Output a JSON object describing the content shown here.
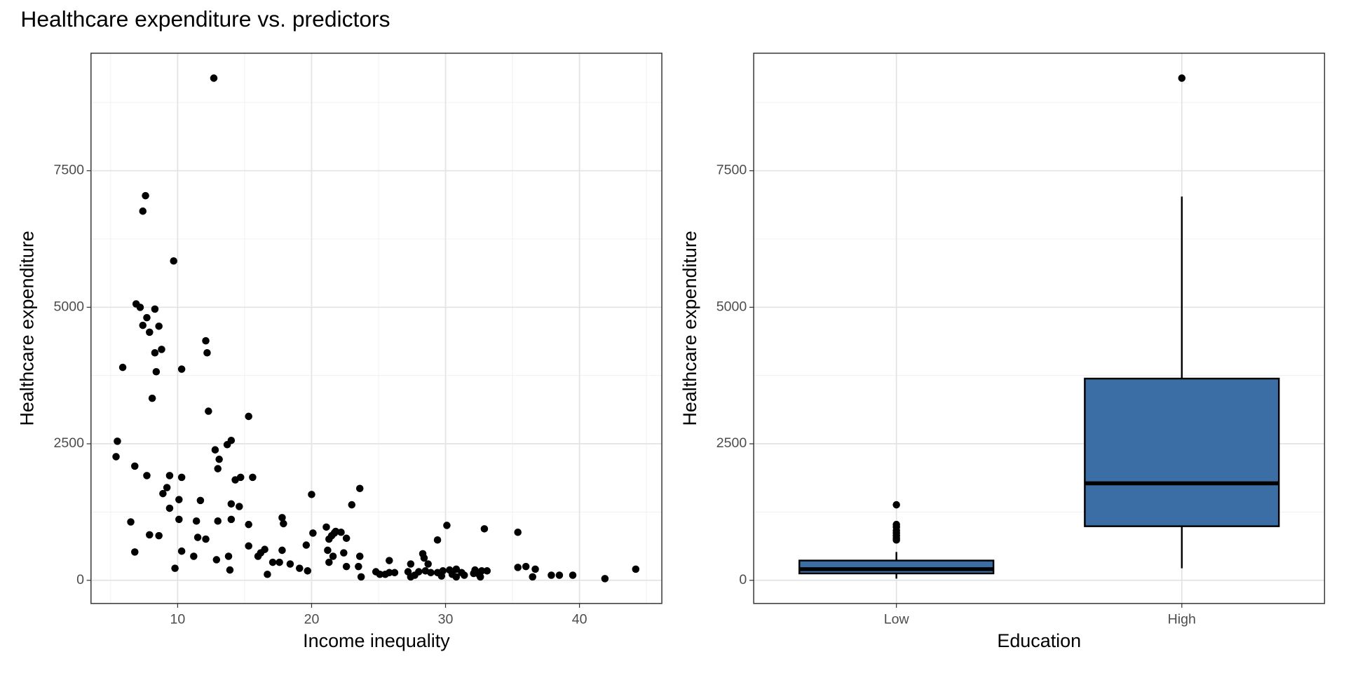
{
  "title": "Healthcare expenditure vs. predictors",
  "chart_data": [
    {
      "type": "scatter",
      "xlabel": "Income inequality",
      "ylabel": "Healthcare expenditure",
      "color": "#000000",
      "grid": true,
      "xlim": [
        3.53,
        46.15
      ],
      "ylim": [
        -424,
        9652
      ],
      "xticks": [
        10,
        20,
        30,
        40
      ],
      "yticks": [
        0,
        2500,
        5000,
        7500
      ],
      "minor_xticks": [
        5,
        15,
        25,
        35,
        45
      ],
      "minor_yticks": [
        1250,
        3750,
        6250,
        8750
      ],
      "x": [
        5.4,
        5.5,
        5.9,
        6.5,
        6.8,
        6.8,
        6.9,
        7.2,
        7.4,
        7.4,
        7.6,
        7.7,
        7.7,
        7.9,
        7.9,
        8.1,
        8.3,
        8.3,
        8.4,
        8.6,
        8.6,
        8.8,
        8.9,
        9.2,
        9.4,
        9.4,
        9.7,
        9.8,
        10.1,
        10.1,
        10.3,
        10.3,
        10.3,
        11.2,
        11.4,
        11.5,
        11.7,
        12.1,
        12.1,
        12.2,
        12.3,
        12.7,
        12.8,
        12.9,
        13.0,
        13.1,
        13.0,
        13.7,
        13.8,
        13.9,
        14.0,
        14.0,
        14.0,
        14.3,
        14.6,
        14.7,
        15.3,
        15.3,
        15.3,
        15.6,
        16.0,
        16.2,
        16.5,
        16.7,
        17.1,
        17.6,
        17.8,
        17.8,
        17.9,
        18.4,
        19.1,
        19.6,
        19.7,
        20.0,
        20.1,
        21.1,
        21.2,
        21.3,
        21.3,
        21.5,
        21.6,
        21.7,
        21.8,
        22.2,
        22.4,
        22.6,
        22.6,
        23.0,
        23.5,
        23.6,
        23.6,
        23.7,
        24.8,
        25.1,
        25.5,
        25.8,
        25.8,
        26.2,
        27.2,
        27.4,
        27.4,
        27.7,
        28.0,
        28.3,
        28.4,
        28.5,
        28.7,
        28.9,
        29.4,
        29.4,
        29.7,
        29.8,
        30.1,
        30.3,
        30.5,
        30.8,
        30.8,
        31.2,
        31.4,
        32.1,
        32.2,
        32.5,
        32.6,
        32.7,
        32.9,
        33.1,
        35.4,
        35.4,
        36.0,
        36.5,
        36.7,
        37.9,
        38.5,
        39.5,
        41.9,
        44.2
      ],
      "values": [
        2264,
        2547,
        3899,
        1069,
        2091,
        519,
        5062,
        4999,
        6760,
        4669,
        7043,
        4810,
        1918,
        4543,
        833,
        3333,
        4967,
        4166,
        3820,
        4653,
        817,
        4229,
        1588,
        1698,
        1320,
        1918,
        5848,
        220,
        1478,
        1116,
        1886,
        3867,
        534,
        440,
        1085,
        786,
        1462,
        4386,
        755,
        4166,
        3097,
        9196,
        2389,
        377,
        2044,
        2216,
        1085,
        2484,
        440,
        189,
        2562,
        1116,
        1399,
        1839,
        1352,
        1886,
        3002,
        1022,
        629,
        1886,
        440,
        503,
        566,
        110,
        330,
        330,
        1148,
        550,
        1038,
        299,
        220,
        645,
        173,
        1572,
        865,
        975,
        550,
        755,
        330,
        817,
        440,
        865,
        896,
        880,
        503,
        770,
        252,
        1383,
        252,
        1682,
        440,
        63,
        157,
        110,
        110,
        362,
        141,
        141,
        157,
        299,
        63,
        94,
        157,
        487,
        409,
        173,
        299,
        141,
        739,
        141,
        79,
        173,
        1006,
        189,
        110,
        63,
        204,
        141,
        94,
        126,
        189,
        110,
        63,
        173,
        943,
        173,
        880,
        236,
        252,
        63,
        204,
        94,
        94,
        94,
        31,
        204
      ]
    },
    {
      "type": "box",
      "xlabel": "Education",
      "ylabel": "Healthcare expenditure",
      "color": "#3a6ea5",
      "grid": true,
      "ylim": [
        -424,
        9652
      ],
      "yticks": [
        0,
        2500,
        5000,
        7500
      ],
      "minor_yticks": [
        1250,
        3750,
        6250,
        8750
      ],
      "categories": [
        "Low",
        "High"
      ],
      "boxes": [
        {
          "whisker_low": 31,
          "q1": 126,
          "median": 204,
          "q3": 362,
          "whisker_high": 519,
          "outliers": [
            1383,
            1022,
            975,
            912,
            865,
            817,
            770,
            739
          ]
        },
        {
          "whisker_low": 220,
          "q1": 990,
          "median": 1776,
          "q3": 3694,
          "whisker_high": 7027,
          "outliers": [
            9196
          ]
        }
      ]
    }
  ]
}
